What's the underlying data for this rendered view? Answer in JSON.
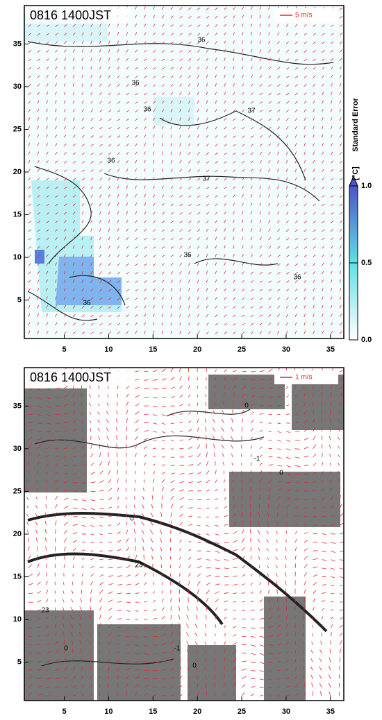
{
  "panels": [
    {
      "title": "0816 1400JST",
      "vector_legend": "5 m/s",
      "xlim": [
        0.5,
        36.5
      ],
      "ylim": [
        0.5,
        39.5
      ],
      "xticks": [
        5,
        10,
        15,
        20,
        25,
        30,
        35
      ],
      "yticks": [
        5,
        10,
        15,
        20,
        25,
        30,
        35
      ],
      "contour_labels": [
        "36",
        "36",
        "36",
        "37",
        "36",
        "37",
        "36",
        "36",
        "36"
      ]
    },
    {
      "title": "0816 1400JST",
      "vector_legend": "1 m/s",
      "xlim": [
        0.5,
        36.5
      ],
      "ylim": [
        0.5,
        39.5
      ],
      "xticks": [
        5,
        10,
        15,
        20,
        25,
        30,
        35
      ],
      "yticks": [
        5,
        10,
        15,
        20,
        25,
        30,
        35
      ],
      "contour_labels": [
        "0",
        "-1",
        "0",
        "0",
        "23",
        "23",
        "-1",
        "0",
        "0"
      ]
    }
  ],
  "colorbar": {
    "label": "Standard Error",
    "unit": "[°C]",
    "lim": [
      0,
      1
    ],
    "ticks": [
      {
        "value": 0,
        "label": "0.0"
      },
      {
        "value": 0.5,
        "label": "0.5"
      },
      {
        "value": 1,
        "label": "1.0"
      }
    ]
  }
}
